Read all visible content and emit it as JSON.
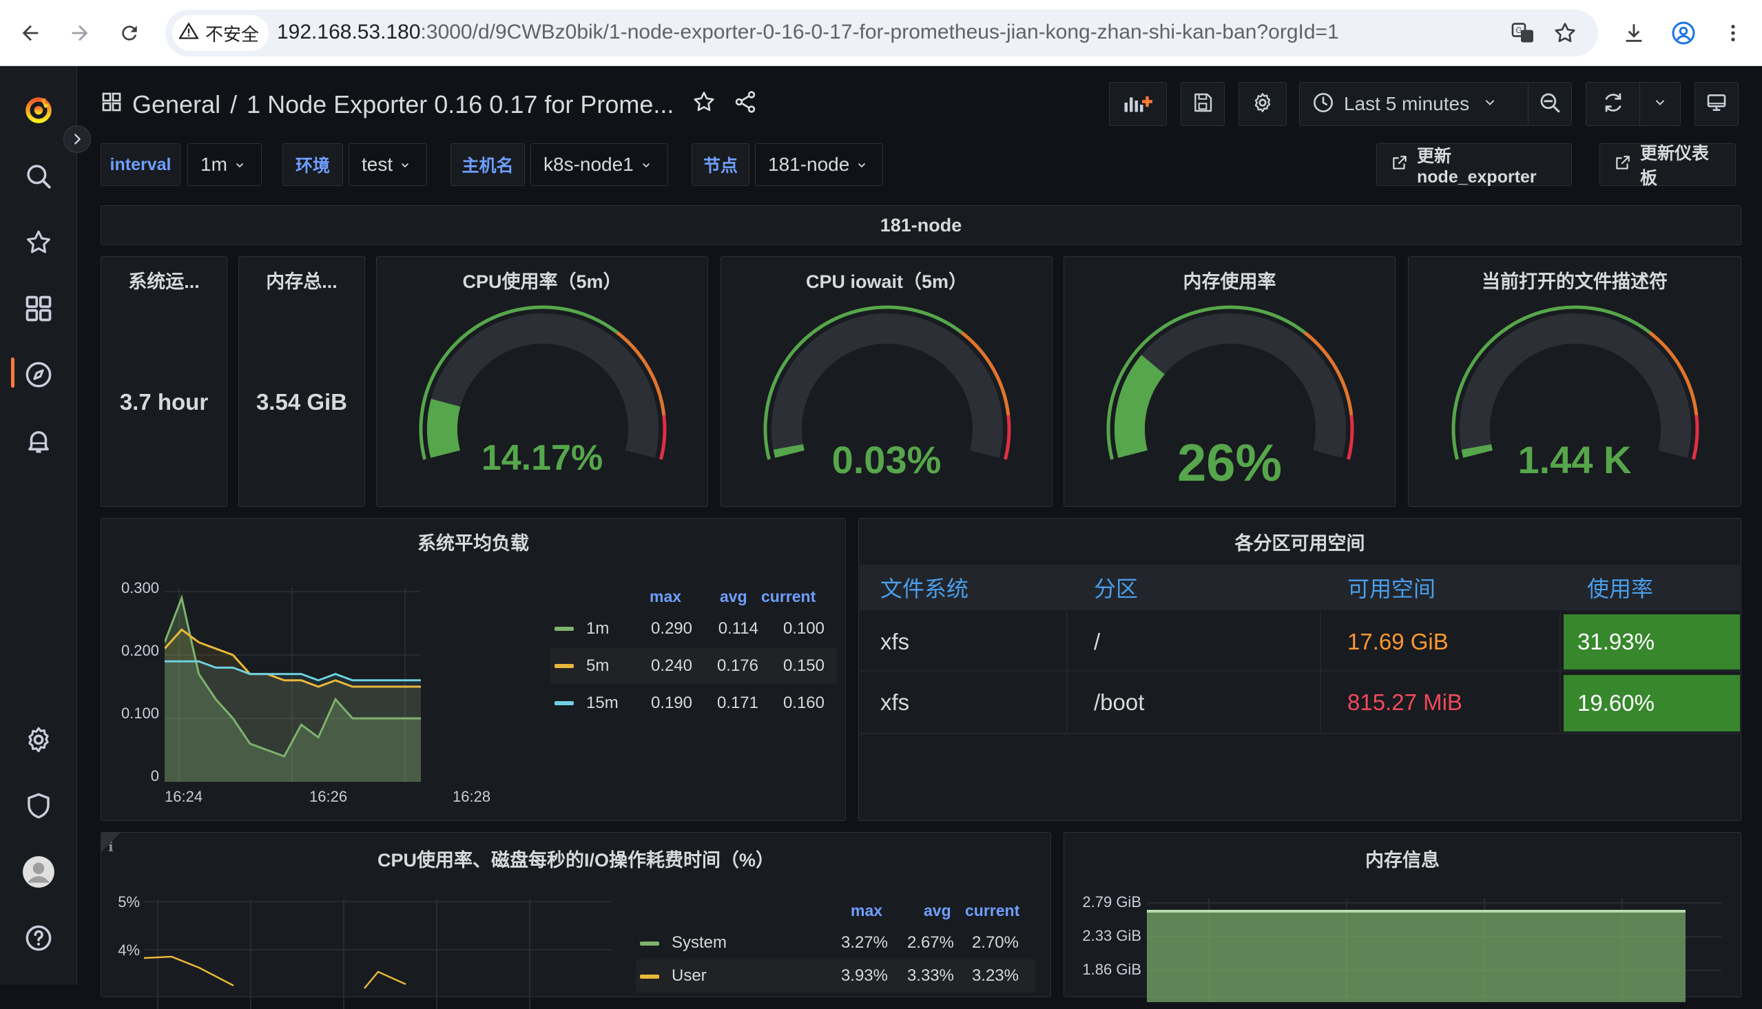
{
  "browser": {
    "insecure_label": "不安全",
    "url_host": "192.168.53.180",
    "url_rest": ":3000/d/9CWBz0bik/1-node-exporter-0-16-0-17-for-prometheus-jian-kong-zhan-shi-kan-ban?orgId=1"
  },
  "header": {
    "folder": "General",
    "separator": "/",
    "dashboard_title": "1 Node Exporter 0.16 0.17 for Prome...",
    "time_range": "Last 5 minutes"
  },
  "variables": [
    {
      "label": "interval",
      "value": "1m"
    },
    {
      "label": "环境",
      "value": "test"
    },
    {
      "label": "主机名",
      "value": "k8s-node1"
    },
    {
      "label": "节点",
      "value": "181-node"
    }
  ],
  "links": {
    "update_node_exporter": "更新node_exporter",
    "update_dashboard": "更新仪表板"
  },
  "row": {
    "title": "181-node"
  },
  "stats": {
    "uptime": {
      "title": "系统运...",
      "value": "3.7 hour"
    },
    "mem_total": {
      "title": "内存总...",
      "value": "3.54 GiB"
    }
  },
  "gauges": [
    {
      "title": "CPU使用率（5m）",
      "value_text": "14.17%",
      "fraction": 0.1417,
      "thresholds": [
        "green",
        "orange",
        "red"
      ]
    },
    {
      "title": "CPU iowait（5m）",
      "value_text": "0.03%",
      "fraction": 0.02,
      "thresholds": [
        "green",
        "orange",
        "red"
      ]
    },
    {
      "title": "内存使用率",
      "value_text": "26%",
      "fraction": 0.26,
      "thresholds": [
        "green",
        "orange",
        "red"
      ]
    },
    {
      "title": "当前打开的文件描述符",
      "value_text": "1.44 K",
      "fraction": 0.02,
      "thresholds": [
        "green",
        "orange",
        "red"
      ]
    }
  ],
  "load_panel": {
    "title": "系统平均负载",
    "legend_headers": {
      "max": "max",
      "avg": "avg",
      "current": "current"
    },
    "legend": [
      {
        "name": "1m",
        "max": "0.290",
        "avg": "0.114",
        "current": "0.100",
        "color": "#7eb26d"
      },
      {
        "name": "5m",
        "max": "0.240",
        "avg": "0.176",
        "current": "0.150",
        "color": "#eab839"
      },
      {
        "name": "15m",
        "max": "0.190",
        "avg": "0.171",
        "current": "0.160",
        "color": "#6ed0e0"
      }
    ],
    "y_ticks": [
      "0.300",
      "0.200",
      "0.100",
      "0"
    ],
    "x_ticks": [
      "16:24",
      "16:26",
      "16:28"
    ]
  },
  "chart_data": {
    "type": "line",
    "ylim": [
      0,
      0.3
    ],
    "x": [
      0,
      1,
      2,
      3,
      4,
      5,
      6,
      7,
      8,
      9,
      10,
      11,
      12,
      13,
      14,
      15
    ],
    "series": [
      {
        "name": "1m",
        "values": [
          0.22,
          0.29,
          0.17,
          0.13,
          0.1,
          0.06,
          0.05,
          0.04,
          0.09,
          0.07,
          0.13,
          0.1,
          0.1,
          0.1,
          0.1,
          0.1
        ]
      },
      {
        "name": "5m",
        "values": [
          0.21,
          0.24,
          0.22,
          0.21,
          0.2,
          0.17,
          0.17,
          0.16,
          0.16,
          0.15,
          0.16,
          0.15,
          0.15,
          0.15,
          0.15,
          0.15
        ]
      },
      {
        "name": "15m",
        "values": [
          0.19,
          0.19,
          0.19,
          0.18,
          0.18,
          0.17,
          0.17,
          0.17,
          0.17,
          0.16,
          0.17,
          0.16,
          0.16,
          0.16,
          0.16,
          0.16
        ]
      }
    ]
  },
  "partition_panel": {
    "title": "各分区可用空间",
    "columns": [
      "文件系统",
      "分区",
      "可用空间",
      "使用率"
    ],
    "rows": [
      {
        "fs": "xfs",
        "mount": "/",
        "avail": "17.69 GiB",
        "avail_color": "#ff9830",
        "usage": "31.93%"
      },
      {
        "fs": "xfs",
        "mount": "/boot",
        "avail": "815.27 MiB",
        "avail_color": "#f2495c",
        "usage": "19.60%"
      }
    ]
  },
  "cpu_io_panel": {
    "title": "CPU使用率、磁盘每秒的I/O操作耗费时间（%）",
    "info": "i",
    "y_ticks": [
      "5%",
      "4%"
    ],
    "legend_headers": {
      "max": "max",
      "avg": "avg",
      "current": "current"
    },
    "legend": [
      {
        "name": "System",
        "max": "3.27%",
        "avg": "2.67%",
        "current": "2.70%",
        "color": "#7eb26d"
      },
      {
        "name": "User",
        "max": "3.93%",
        "avg": "3.33%",
        "current": "3.23%",
        "color": "#eab839"
      }
    ]
  },
  "mem_panel": {
    "title": "内存信息",
    "y_ticks": [
      "2.79 GiB",
      "2.33 GiB",
      "1.86 GiB"
    ]
  }
}
